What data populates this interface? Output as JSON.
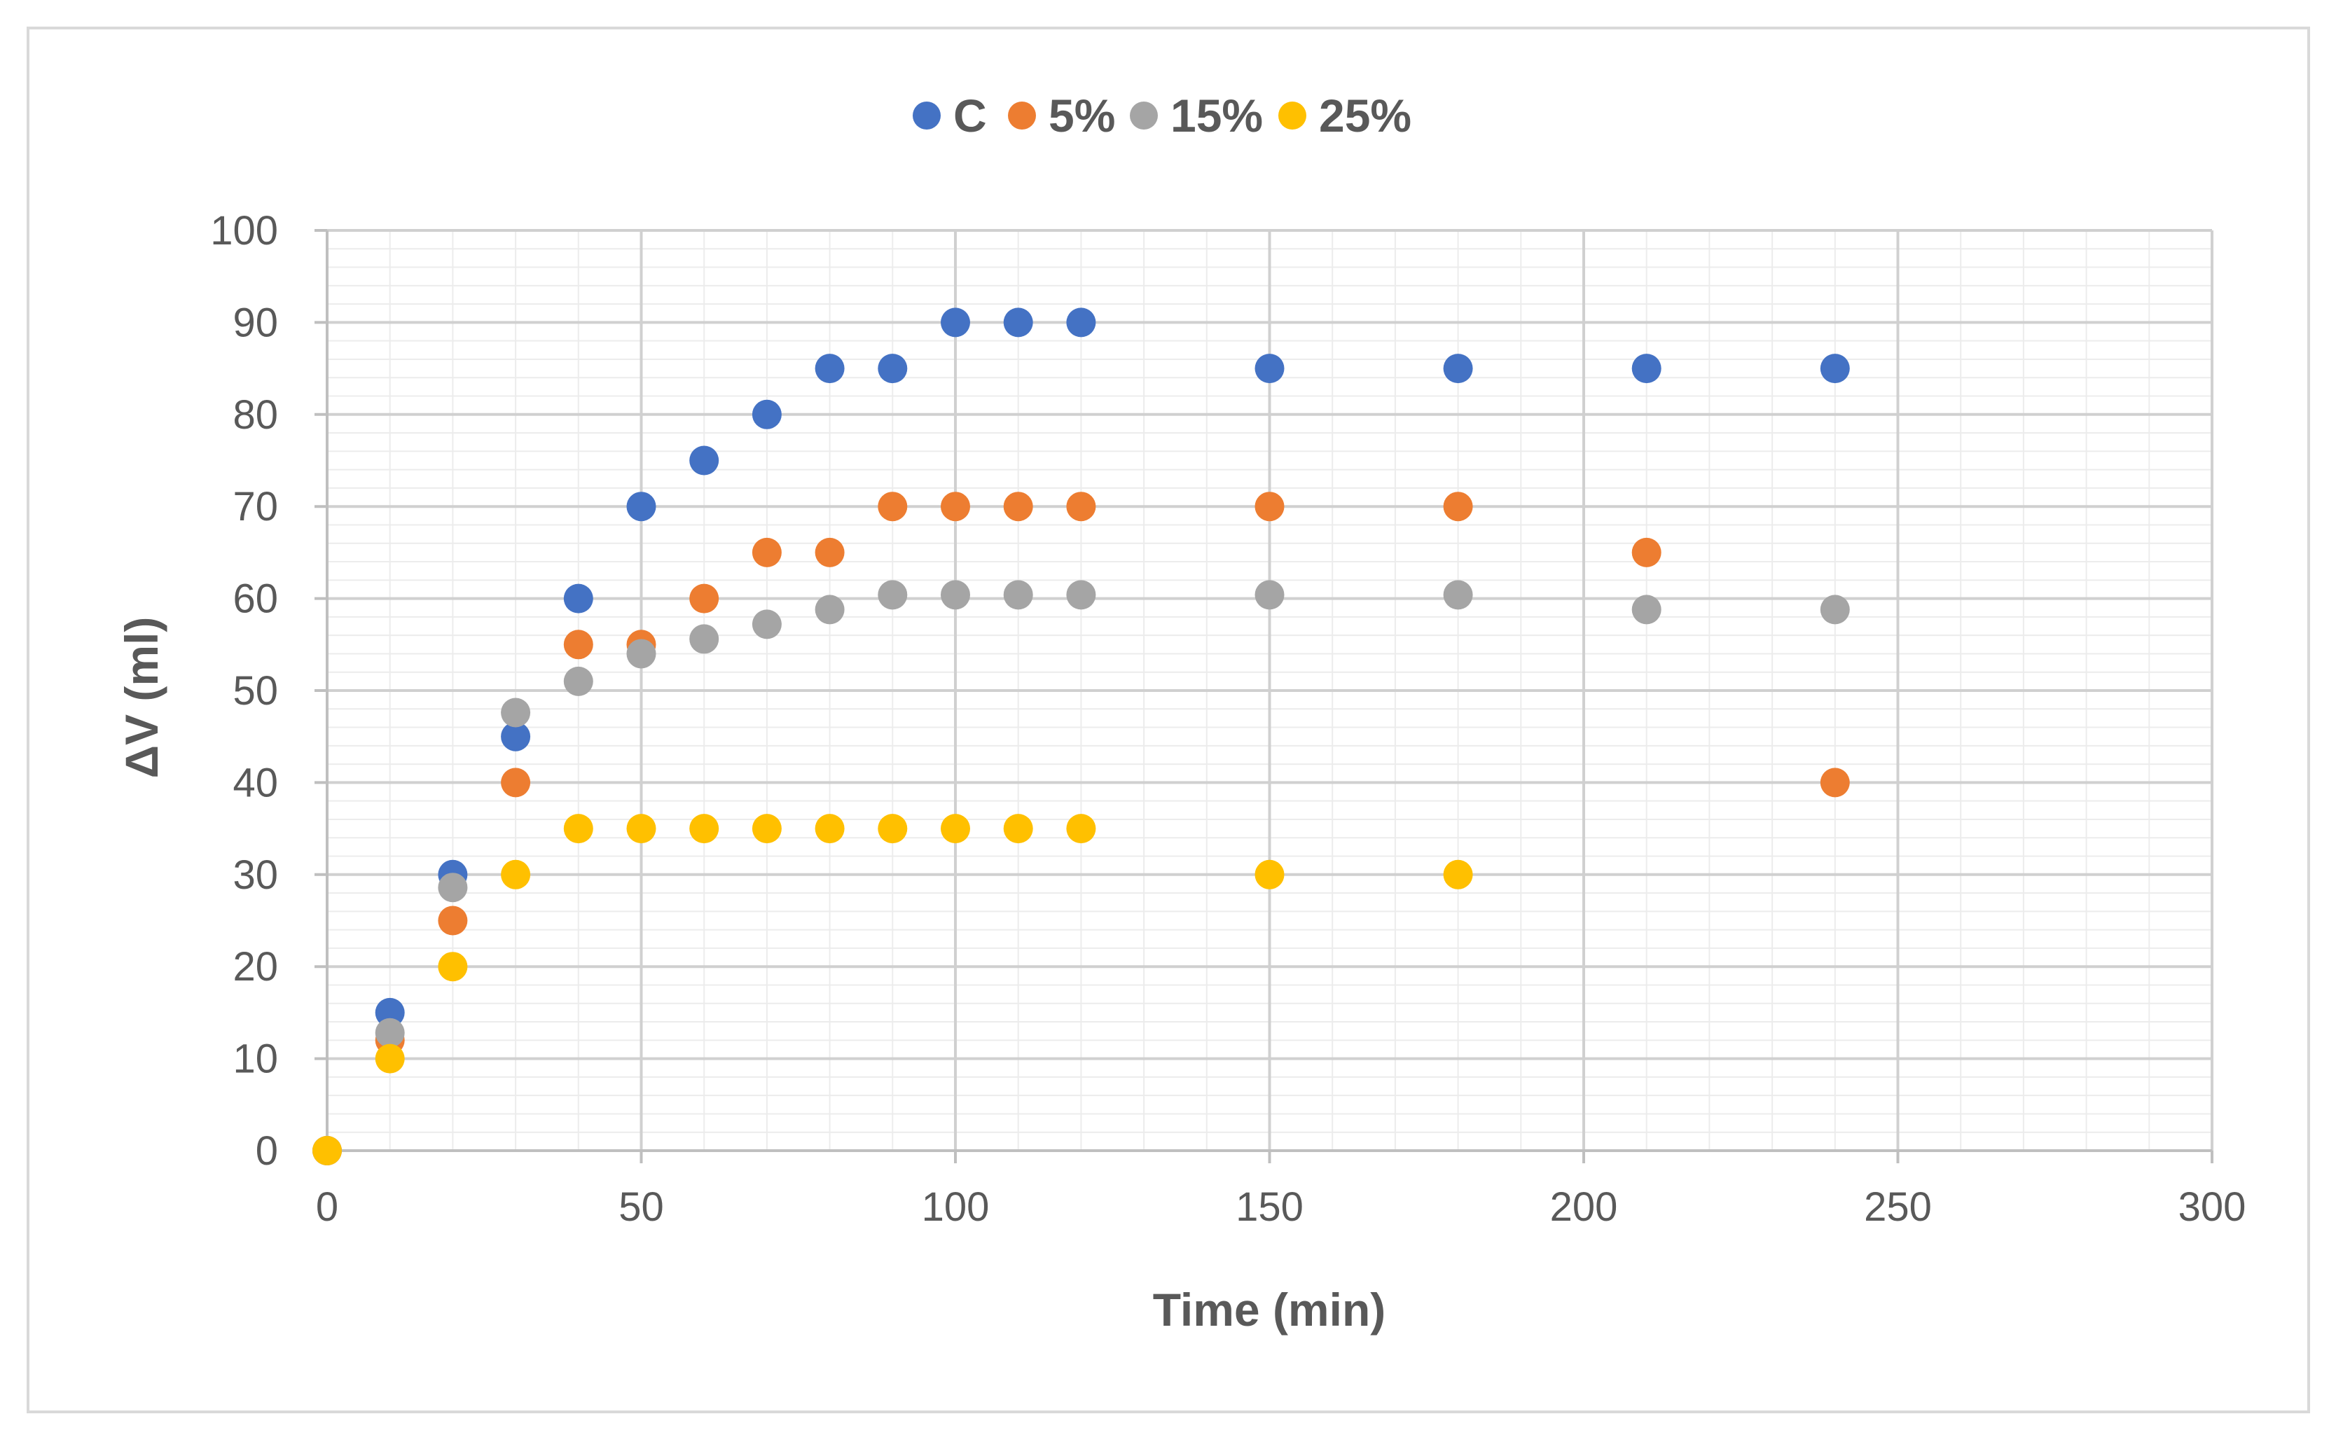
{
  "chart_data": {
    "type": "scatter",
    "title": "",
    "xlabel": "Time (min)",
    "ylabel": "ΔV (ml)",
    "xlim": [
      0,
      300
    ],
    "ylim": [
      0,
      100
    ],
    "x_ticks": [
      0,
      50,
      100,
      150,
      200,
      250,
      300
    ],
    "y_ticks": [
      0,
      10,
      20,
      30,
      40,
      50,
      60,
      70,
      80,
      90,
      100
    ],
    "x_tick_labels": [
      "0",
      "50",
      "100",
      "150",
      "200",
      "250",
      "300"
    ],
    "y_tick_labels": [
      "0",
      "10",
      "20",
      "30",
      "40",
      "50",
      "60",
      "70",
      "80",
      "90",
      "100"
    ],
    "grid": true,
    "legend_position": "top-center",
    "series": [
      {
        "name": "C",
        "color": "#4472C4",
        "points": [
          [
            0,
            0
          ],
          [
            10,
            15
          ],
          [
            20,
            30
          ],
          [
            30,
            45
          ],
          [
            40,
            60
          ],
          [
            50,
            70
          ],
          [
            60,
            75
          ],
          [
            70,
            80
          ],
          [
            80,
            85
          ],
          [
            90,
            85
          ],
          [
            100,
            90
          ],
          [
            110,
            90
          ],
          [
            120,
            90
          ],
          [
            150,
            85
          ],
          [
            180,
            85
          ],
          [
            210,
            85
          ],
          [
            240,
            85
          ]
        ]
      },
      {
        "name": "5%",
        "color": "#ED7D31",
        "points": [
          [
            0,
            0
          ],
          [
            10,
            12
          ],
          [
            20,
            25
          ],
          [
            30,
            40
          ],
          [
            40,
            55
          ],
          [
            50,
            55
          ],
          [
            60,
            60
          ],
          [
            70,
            65
          ],
          [
            80,
            65
          ],
          [
            90,
            70
          ],
          [
            100,
            70
          ],
          [
            110,
            70
          ],
          [
            120,
            70
          ],
          [
            150,
            70
          ],
          [
            180,
            70
          ],
          [
            210,
            65
          ],
          [
            240,
            40
          ]
        ]
      },
      {
        "name": "15%",
        "color": "#A5A5A5",
        "points": [
          [
            0,
            0
          ],
          [
            10,
            12.8
          ],
          [
            20,
            28.6
          ],
          [
            30,
            47.6
          ],
          [
            40,
            51
          ],
          [
            50,
            54
          ],
          [
            60,
            55.6
          ],
          [
            70,
            57.2
          ],
          [
            80,
            58.8
          ],
          [
            90,
            60.4
          ],
          [
            100,
            60.4
          ],
          [
            110,
            60.4
          ],
          [
            120,
            60.4
          ],
          [
            150,
            60.4
          ],
          [
            180,
            60.4
          ],
          [
            210,
            58.8
          ],
          [
            240,
            58.8
          ]
        ]
      },
      {
        "name": "25%",
        "color": "#FFC000",
        "points": [
          [
            0,
            0
          ],
          [
            10,
            10
          ],
          [
            20,
            20
          ],
          [
            30,
            30
          ],
          [
            40,
            35
          ],
          [
            50,
            35
          ],
          [
            60,
            35
          ],
          [
            70,
            35
          ],
          [
            80,
            35
          ],
          [
            90,
            35
          ],
          [
            100,
            35
          ],
          [
            110,
            35
          ],
          [
            120,
            35
          ],
          [
            150,
            30
          ],
          [
            180,
            30
          ]
        ]
      }
    ]
  }
}
